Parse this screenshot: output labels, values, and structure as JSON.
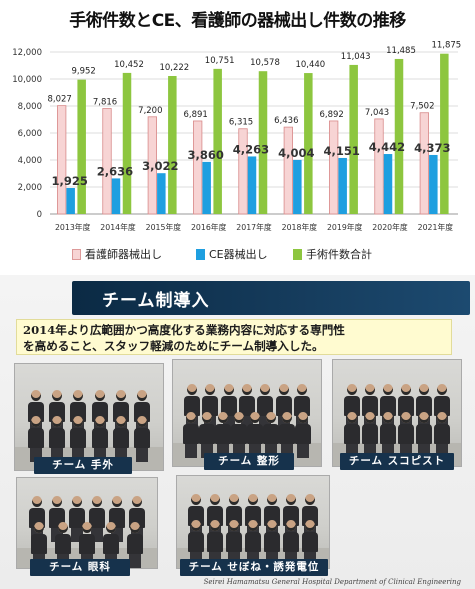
{
  "title": "手術件数とCE、看護師の器械出し件数の推移",
  "chart_data": {
    "type": "bar",
    "title": "手術件数とCE、看護師の器械出し件数の推移",
    "categories": [
      "2013年度",
      "2014年度",
      "2015年度",
      "2016年度",
      "2017年度",
      "2018年度",
      "2019年度",
      "2020年度",
      "2021年度"
    ],
    "series": [
      {
        "name": "看護師器械出し",
        "color": "#f7d4d4",
        "values": [
          8027,
          7816,
          7200,
          6891,
          6315,
          6436,
          6892,
          7043,
          7502
        ]
      },
      {
        "name": "CE器械出し",
        "color": "#1e9fe0",
        "values": [
          1925,
          2636,
          3022,
          3860,
          4263,
          4004,
          4151,
          4442,
          4373
        ]
      },
      {
        "name": "手術件数合計",
        "color": "#8dc63f",
        "values": [
          9952,
          10452,
          10222,
          10751,
          10578,
          10440,
          11043,
          11485,
          11875
        ]
      }
    ],
    "yticks": [
      0,
      2000,
      4000,
      6000,
      8000,
      10000,
      12000
    ],
    "ylim": [
      0,
      12000
    ],
    "legend_position": "bottom",
    "grid": true
  },
  "team": {
    "heading": "チーム制導入",
    "description_line1": "2014年より広範囲かつ高度化する業務内容に対応する専門性",
    "description_line2": "を高めること、スタッフ軽減のためにチーム制導入した。",
    "photos": [
      {
        "caption": "チーム 手外"
      },
      {
        "caption": "チーム 整形"
      },
      {
        "caption": "チーム スコピスト"
      },
      {
        "caption": "チーム 眼科"
      },
      {
        "caption": "チーム せぼね・誘発電位"
      }
    ],
    "credit": "Seirei Hamamatsu General Hospital Department of Clinical Engineering"
  }
}
